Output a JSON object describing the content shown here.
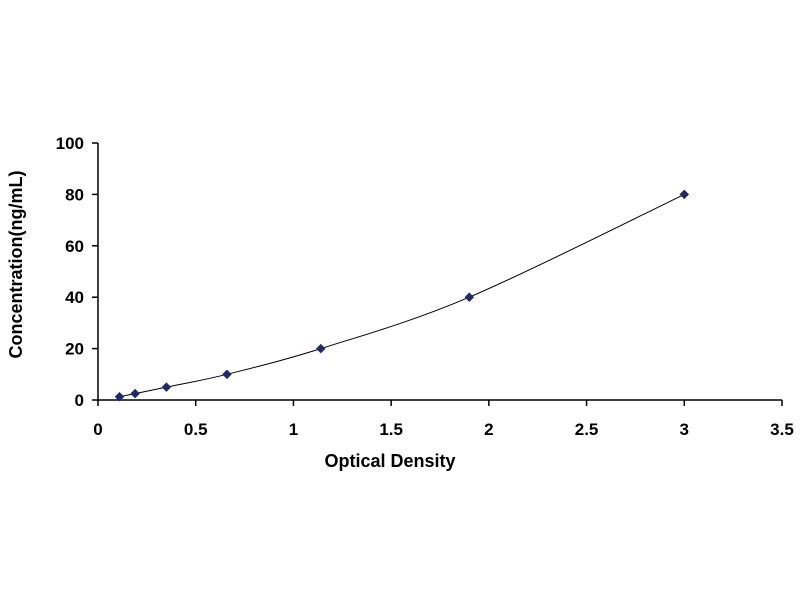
{
  "chart_data": {
    "type": "scatter",
    "title": "",
    "xlabel": "Optical Density",
    "ylabel": "Concentration(ng/mL)",
    "xlim": [
      0,
      3.5
    ],
    "ylim": [
      0,
      100
    ],
    "x_ticks": [
      0,
      0.5,
      1,
      1.5,
      2,
      2.5,
      3,
      3.5
    ],
    "x_tick_labels": [
      "0",
      "0.5",
      "1",
      "1.5",
      "2",
      "2.5",
      "3",
      "3.5"
    ],
    "y_ticks": [
      0,
      20,
      40,
      60,
      80,
      100
    ],
    "y_tick_labels": [
      "0",
      "20",
      "40",
      "60",
      "80",
      "100"
    ],
    "grid": false,
    "legend": false,
    "trendline": "smooth curve through points",
    "colors": {
      "marker": "#1f2a6b",
      "line": "#000000",
      "axis": "#000000"
    },
    "series": [
      {
        "x": [
          0.11,
          0.19,
          0.35,
          0.66,
          1.14,
          1.9,
          3.0
        ],
        "y": [
          1.25,
          2.5,
          5,
          10,
          20,
          40,
          80
        ]
      }
    ]
  }
}
